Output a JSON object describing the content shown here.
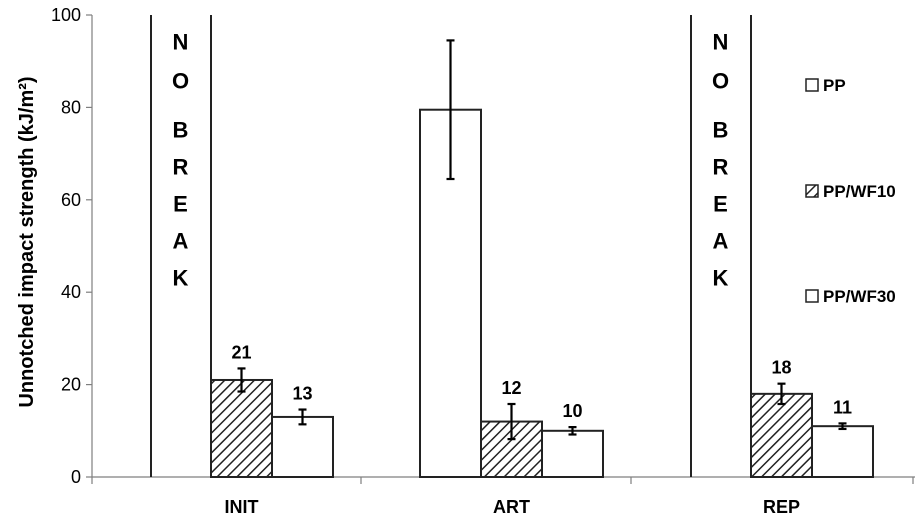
{
  "chart_data": {
    "type": "bar",
    "title": "",
    "xlabel": "",
    "ylabel": "Unnotched impact strength (kJ/m²)",
    "ylim": [
      0,
      100
    ],
    "yticks": [
      0,
      20,
      40,
      60,
      80,
      100
    ],
    "grid": false,
    "legend_position": "right",
    "categories": [
      "INIT",
      "ART",
      "REP"
    ],
    "series": [
      {
        "name": "PP",
        "fill": "white",
        "values": [
          null,
          79.5,
          null
        ],
        "errors": [
          null,
          15,
          null
        ],
        "labels": [
          "",
          "",
          ""
        ]
      },
      {
        "name": "PP/WF10",
        "fill": "hatched",
        "values": [
          21,
          12,
          18
        ],
        "errors": [
          2.5,
          3.8,
          2.2
        ],
        "labels": [
          "21",
          "12",
          "18"
        ]
      },
      {
        "name": "PP/WF30",
        "fill": "white",
        "values": [
          13,
          10,
          11
        ],
        "errors": [
          1.6,
          0.8,
          0.6
        ],
        "labels": [
          "13",
          "10",
          "11"
        ]
      }
    ],
    "annotations": [
      {
        "category": "INIT",
        "series": "PP",
        "text": "NO BREAK"
      },
      {
        "category": "REP",
        "series": "PP",
        "text": "NO BREAK"
      }
    ],
    "colors": {
      "stroke": "#222222",
      "fill": "#ffffff"
    }
  }
}
